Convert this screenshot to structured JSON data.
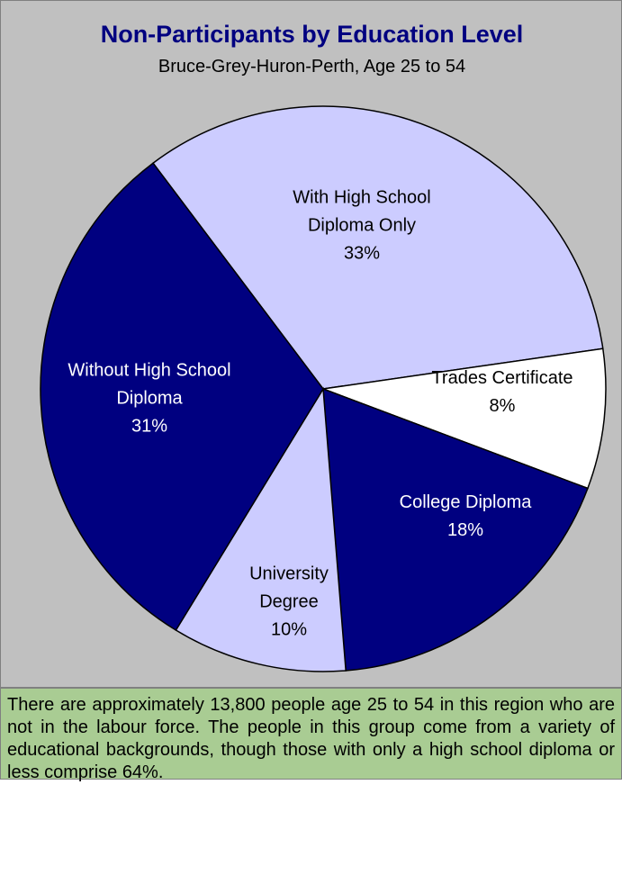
{
  "chart_data": {
    "type": "pie",
    "title": "Non-Participants by Education Level",
    "subtitle": "Bruce-Grey-Huron-Perth, Age 25 to 54",
    "categories": [
      "With High School Diploma Only",
      "Trades Certificate",
      "College Diploma",
      "University Degree",
      "Without High School Diploma"
    ],
    "values": [
      33,
      8,
      18,
      10,
      31
    ],
    "value_labels": [
      "33%",
      "8%",
      "18%",
      "10%",
      "31%"
    ],
    "colors": [
      "#ccccff",
      "#ffffff",
      "#000080",
      "#ccccff",
      "#000080"
    ],
    "label_colors": [
      "#000000",
      "#000000",
      "#ffffff",
      "#000000",
      "#ffffff"
    ]
  },
  "note": "There are approximately 13,800 people age 25 to 54 in this region who are not in the labour force. The people in this group come from a variety of educational backgrounds, though those with only a high school diploma or less comprise 64%."
}
